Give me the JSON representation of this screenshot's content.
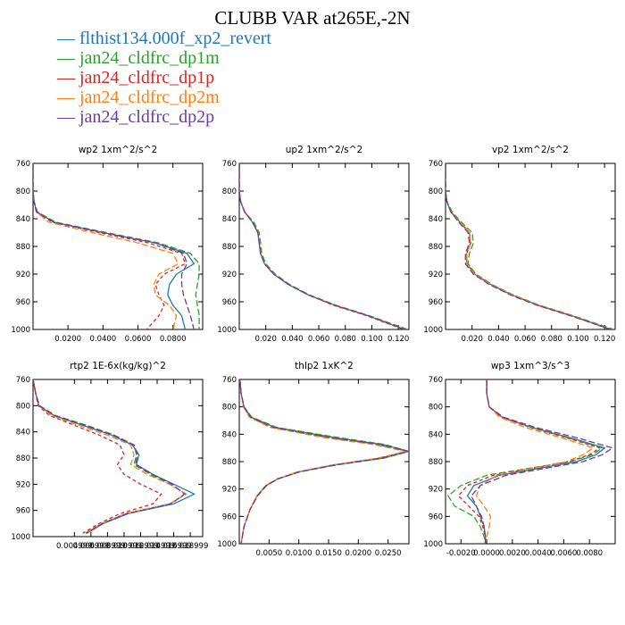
{
  "title": "CLUBB VAR at265E,-2N",
  "legend": [
    {
      "label": "flthist134.000f_xp2_revert",
      "color": "#1f77b4"
    },
    {
      "label": "jan24_cldfrc_dp1m",
      "color": "#2ca02c"
    },
    {
      "label": "jan24_cldfrc_dp1p",
      "color": "#d62728"
    },
    {
      "label": "jan24_cldfrc_dp2m",
      "color": "#ff7f0e"
    },
    {
      "label": "jan24_cldfrc_dp2p",
      "color": "#6a3d9a"
    }
  ],
  "chart_data": [
    {
      "type": "line",
      "title": "wp2  1xm^2/s^2",
      "xlim": [
        0.0,
        0.097
      ],
      "ylim": [
        760,
        1000
      ],
      "y_inverted": true,
      "xticks": [
        0.02,
        0.04,
        0.06,
        0.08
      ],
      "xtick_labels": [
        "0.0200",
        "0.0400",
        "0.0600",
        "0.0800"
      ],
      "yticks": [
        760,
        800,
        840,
        880,
        920,
        960,
        1000
      ],
      "yticklabels": [
        "760",
        "800",
        "840",
        "880",
        "920",
        "960",
        "1000"
      ],
      "y": [
        760,
        780,
        800,
        815,
        830,
        845,
        860,
        875,
        890,
        905,
        920,
        935,
        950,
        965,
        980,
        1000
      ],
      "series": [
        {
          "values": [
            0.0,
            0.0,
            0.0,
            0.0005,
            0.002,
            0.012,
            0.04,
            0.07,
            0.088,
            0.092,
            0.082,
            0.078,
            0.077,
            0.08,
            0.085,
            0.087
          ]
        },
        {
          "values": [
            0.0,
            0.0,
            0.0,
            0.0006,
            0.0025,
            0.013,
            0.042,
            0.072,
            0.09,
            0.095,
            0.095,
            0.094,
            0.093,
            0.094,
            0.095,
            0.095
          ]
        },
        {
          "values": [
            0.0,
            0.0,
            0.0,
            0.0005,
            0.002,
            0.011,
            0.038,
            0.066,
            0.085,
            0.087,
            0.075,
            0.07,
            0.072,
            0.075,
            0.072,
            0.065
          ]
        },
        {
          "values": [
            0.0,
            0.0,
            0.0,
            0.0005,
            0.0018,
            0.009,
            0.034,
            0.06,
            0.08,
            0.083,
            0.072,
            0.069,
            0.07,
            0.078,
            0.082,
            0.08
          ]
        },
        {
          "values": [
            0.0,
            0.0,
            0.0,
            0.0005,
            0.002,
            0.012,
            0.04,
            0.07,
            0.086,
            0.088,
            0.085,
            0.085,
            0.086,
            0.088,
            0.09,
            0.092
          ]
        }
      ]
    },
    {
      "type": "line",
      "title": "up2  1xm^2/s^2",
      "xlim": [
        0.0,
        0.128
      ],
      "ylim": [
        760,
        1000
      ],
      "y_inverted": true,
      "xticks": [
        0.02,
        0.04,
        0.06,
        0.08,
        0.1,
        0.12
      ],
      "xtick_labels": [
        "0.020",
        "0.040",
        "0.060",
        "0.080",
        "0.100",
        "0.120"
      ],
      "yticks": [
        760,
        800,
        840,
        880,
        920,
        960,
        1000
      ],
      "yticklabels": [
        "760",
        "800",
        "840",
        "880",
        "920",
        "960",
        "1000"
      ],
      "y": [
        760,
        780,
        800,
        815,
        830,
        845,
        860,
        875,
        890,
        905,
        920,
        935,
        950,
        965,
        980,
        1000
      ],
      "series": [
        {
          "values": [
            0.0,
            0.0,
            0.0,
            0.001,
            0.004,
            0.01,
            0.014,
            0.015,
            0.016,
            0.019,
            0.026,
            0.037,
            0.052,
            0.072,
            0.097,
            0.125
          ]
        },
        {
          "values": [
            0.0,
            0.0,
            0.0,
            0.001,
            0.004,
            0.011,
            0.015,
            0.016,
            0.017,
            0.02,
            0.027,
            0.038,
            0.053,
            0.073,
            0.098,
            0.127
          ]
        },
        {
          "values": [
            0.0,
            0.0,
            0.0,
            0.001,
            0.004,
            0.01,
            0.014,
            0.015,
            0.016,
            0.019,
            0.026,
            0.037,
            0.052,
            0.071,
            0.096,
            0.124
          ]
        },
        {
          "values": [
            0.0,
            0.0,
            0.0,
            0.001,
            0.004,
            0.01,
            0.014,
            0.015,
            0.016,
            0.019,
            0.026,
            0.037,
            0.052,
            0.072,
            0.097,
            0.125
          ]
        },
        {
          "values": [
            0.0,
            0.0,
            0.0,
            0.001,
            0.004,
            0.01,
            0.014,
            0.015,
            0.016,
            0.019,
            0.026,
            0.037,
            0.052,
            0.072,
            0.097,
            0.125
          ]
        }
      ]
    },
    {
      "type": "line",
      "title": "vp2  1xm^2/s^2",
      "xlim": [
        0.0,
        0.128
      ],
      "ylim": [
        760,
        1000
      ],
      "y_inverted": true,
      "xticks": [
        0.02,
        0.04,
        0.06,
        0.08,
        0.1,
        0.12
      ],
      "xtick_labels": [
        "0.020",
        "0.040",
        "0.060",
        "0.080",
        "0.100",
        "0.120"
      ],
      "yticks": [
        760,
        800,
        840,
        880,
        920,
        960,
        1000
      ],
      "yticklabels": [
        "760",
        "800",
        "840",
        "880",
        "920",
        "960",
        "1000"
      ],
      "y": [
        760,
        780,
        800,
        815,
        830,
        845,
        860,
        875,
        890,
        905,
        920,
        935,
        950,
        965,
        980,
        1000
      ],
      "series": [
        {
          "values": [
            0.0,
            0.0,
            0.0,
            0.001,
            0.004,
            0.011,
            0.018,
            0.019,
            0.016,
            0.016,
            0.022,
            0.034,
            0.05,
            0.07,
            0.095,
            0.125
          ]
        },
        {
          "values": [
            0.0,
            0.0,
            0.0,
            0.001,
            0.005,
            0.012,
            0.02,
            0.021,
            0.018,
            0.017,
            0.023,
            0.035,
            0.051,
            0.071,
            0.096,
            0.127
          ]
        },
        {
          "values": [
            0.0,
            0.0,
            0.0,
            0.001,
            0.004,
            0.011,
            0.018,
            0.019,
            0.016,
            0.016,
            0.022,
            0.034,
            0.05,
            0.07,
            0.095,
            0.124
          ]
        },
        {
          "values": [
            0.0,
            0.0,
            0.0,
            0.001,
            0.004,
            0.011,
            0.018,
            0.019,
            0.016,
            0.016,
            0.022,
            0.034,
            0.05,
            0.07,
            0.095,
            0.125
          ]
        },
        {
          "values": [
            0.0,
            0.0,
            0.0,
            0.001,
            0.004,
            0.01,
            0.017,
            0.018,
            0.015,
            0.015,
            0.021,
            0.033,
            0.049,
            0.069,
            0.094,
            0.125
          ]
        }
      ]
    },
    {
      "type": "line",
      "title": "rtp2  1E-6x(kg/kg)^2",
      "xlim": [
        0.0,
        0.0205
      ],
      "ylim": [
        760,
        1000
      ],
      "y_inverted": true,
      "xticks": [
        0.004999,
        0.006999,
        0.008999,
        0.010999,
        0.012999,
        0.014999,
        0.016999,
        0.018999
      ],
      "xtick_labels": [
        "0.004999",
        "0.006999",
        "0.008999",
        "0.010999",
        "0.012999",
        "0.014999",
        "0.016999",
        "0.018999"
      ],
      "yticks": [
        760,
        800,
        840,
        880,
        920,
        960,
        1000
      ],
      "yticklabels": [
        "760",
        "800",
        "840",
        "880",
        "920",
        "960",
        "1000"
      ],
      "y": [
        760,
        780,
        800,
        815,
        830,
        845,
        860,
        875,
        890,
        905,
        920,
        935,
        950,
        965,
        980,
        995
      ],
      "series": [
        {
          "values": [
            0.0,
            0.0003,
            0.0007,
            0.0025,
            0.006,
            0.0095,
            0.012,
            0.0128,
            0.0125,
            0.0145,
            0.017,
            0.0195,
            0.017,
            0.0115,
            0.0085,
            0.0065
          ]
        },
        {
          "values": [
            0.0,
            0.0003,
            0.0008,
            0.0027,
            0.0065,
            0.0098,
            0.0122,
            0.0125,
            0.0122,
            0.0142,
            0.0165,
            0.0185,
            0.0165,
            0.0112,
            0.0083,
            0.0063
          ]
        },
        {
          "values": [
            0.0,
            0.0003,
            0.0006,
            0.002,
            0.005,
            0.008,
            0.0105,
            0.011,
            0.0102,
            0.011,
            0.013,
            0.0155,
            0.0145,
            0.0105,
            0.008,
            0.006
          ]
        },
        {
          "values": [
            0.0,
            0.0003,
            0.0007,
            0.0023,
            0.0055,
            0.009,
            0.0118,
            0.0122,
            0.0118,
            0.0138,
            0.0165,
            0.0185,
            0.0165,
            0.0112,
            0.0083,
            0.0063
          ]
        },
        {
          "values": [
            0.0,
            0.0003,
            0.0007,
            0.0026,
            0.0062,
            0.0097,
            0.0122,
            0.0126,
            0.0124,
            0.0144,
            0.0168,
            0.0183,
            0.0167,
            0.0113,
            0.0084,
            0.0064
          ]
        }
      ]
    },
    {
      "type": "line",
      "title": "thlp2  1xK^2",
      "xlim": [
        0.0,
        0.0285
      ],
      "ylim": [
        760,
        1000
      ],
      "y_inverted": true,
      "xticks": [
        0.005,
        0.01,
        0.015,
        0.02,
        0.025
      ],
      "xtick_labels": [
        "0.0050",
        "0.0100",
        "0.0150",
        "0.0200",
        "0.0250"
      ],
      "yticks": [
        760,
        800,
        840,
        880,
        920,
        960,
        1000
      ],
      "yticklabels": [
        "760",
        "800",
        "840",
        "880",
        "920",
        "960",
        "1000"
      ],
      "y": [
        760,
        780,
        800,
        815,
        830,
        845,
        855,
        865,
        875,
        885,
        895,
        905,
        915,
        930,
        950,
        975,
        1000
      ],
      "series": [
        {
          "values": [
            0.0001,
            0.0003,
            0.0008,
            0.002,
            0.006,
            0.016,
            0.024,
            0.0285,
            0.024,
            0.016,
            0.01,
            0.0065,
            0.0045,
            0.003,
            0.0018,
            0.0008,
            0.0003
          ]
        },
        {
          "values": [
            0.0001,
            0.0003,
            0.0008,
            0.0021,
            0.0063,
            0.0168,
            0.0245,
            0.0285,
            0.0243,
            0.0163,
            0.0102,
            0.0066,
            0.0046,
            0.0031,
            0.0018,
            0.0008,
            0.0003
          ]
        },
        {
          "values": [
            0.0001,
            0.0003,
            0.0007,
            0.0018,
            0.0055,
            0.015,
            0.0232,
            0.0283,
            0.0235,
            0.0158,
            0.0099,
            0.0065,
            0.0045,
            0.003,
            0.0018,
            0.0008,
            0.0003
          ]
        },
        {
          "values": [
            0.0001,
            0.0003,
            0.0007,
            0.0017,
            0.0052,
            0.0143,
            0.0225,
            0.028,
            0.0232,
            0.0156,
            0.0098,
            0.0064,
            0.0044,
            0.003,
            0.0018,
            0.0008,
            0.0003
          ]
        },
        {
          "values": [
            0.0001,
            0.0003,
            0.0008,
            0.0019,
            0.0058,
            0.0155,
            0.0236,
            0.0284,
            0.0237,
            0.0159,
            0.01,
            0.0065,
            0.0045,
            0.003,
            0.0018,
            0.0008,
            0.0003
          ]
        }
      ]
    },
    {
      "type": "line",
      "title": "wp3  1xm^3/s^3",
      "xlim": [
        -0.0032,
        0.01
      ],
      "ylim": [
        760,
        1000
      ],
      "y_inverted": true,
      "xticks": [
        -0.002,
        0.0,
        0.002,
        0.004,
        0.006,
        0.008
      ],
      "xtick_labels": [
        "-0.0020",
        "0.0000",
        "0.0020",
        "0.0040",
        "0.0060",
        "0.0080"
      ],
      "yticks": [
        760,
        800,
        840,
        880,
        920,
        960,
        1000
      ],
      "yticklabels": [
        "760",
        "800",
        "840",
        "880",
        "920",
        "960",
        "1000"
      ],
      "y": [
        760,
        780,
        800,
        815,
        830,
        845,
        860,
        870,
        880,
        890,
        900,
        915,
        930,
        945,
        960,
        975,
        990,
        1000
      ],
      "series": [
        {
          "values": [
            0.0,
            0.0,
            0.0002,
            0.0012,
            0.0035,
            0.0065,
            0.0092,
            0.0085,
            0.007,
            0.004,
            0.001,
            -0.001,
            -0.0015,
            -0.0008,
            -0.0005,
            -0.0002,
            -0.0001,
            -0.0001
          ]
        },
        {
          "values": [
            0.0,
            0.0,
            0.0002,
            0.0012,
            0.0035,
            0.0063,
            0.009,
            0.0082,
            0.0065,
            0.0032,
            0.0,
            -0.002,
            -0.003,
            -0.0025,
            -0.001,
            -0.0005,
            -0.0002,
            -0.0001
          ]
        },
        {
          "values": [
            0.0,
            0.0,
            0.0002,
            0.0012,
            0.0034,
            0.0062,
            0.0088,
            0.008,
            0.0064,
            0.0035,
            0.0005,
            -0.0015,
            -0.0022,
            -0.0014,
            -0.0006,
            -0.0003,
            -0.0001,
            -0.0001
          ]
        },
        {
          "values": [
            0.0,
            0.0,
            0.0002,
            0.001,
            0.003,
            0.0058,
            0.0083,
            0.0075,
            0.0062,
            0.0035,
            0.0008,
            -0.0005,
            -0.0008,
            -0.0002,
            0.0003,
            0.0002,
            0.0,
            -0.0001
          ]
        },
        {
          "values": [
            0.0,
            0.0,
            0.0002,
            0.0013,
            0.0038,
            0.007,
            0.0098,
            0.009,
            0.0075,
            0.0045,
            0.0015,
            -0.0005,
            -0.0012,
            -0.0008,
            -0.0004,
            -0.0002,
            -0.0001,
            -0.0001
          ]
        }
      ]
    }
  ]
}
